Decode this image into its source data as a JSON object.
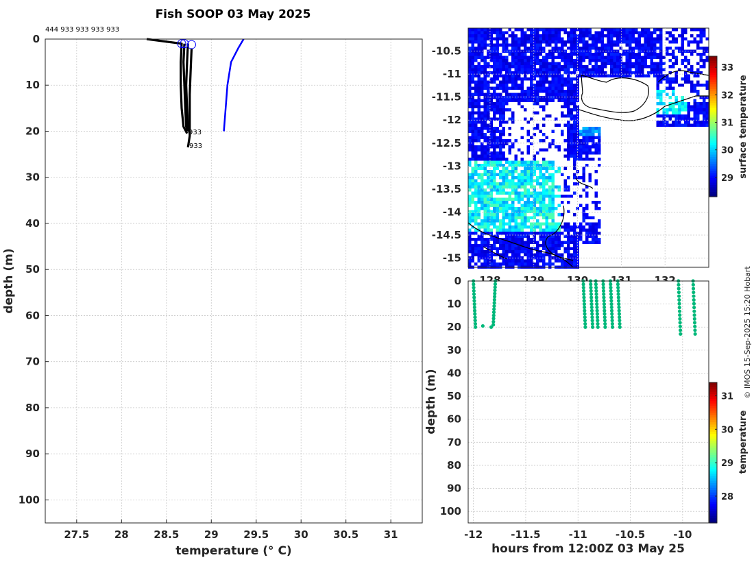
{
  "title": "Fish SOOP 03 May 2025",
  "credit": "© IMOS 15-Sep-2025 15:20 Hobart",
  "profile_id_labels": "444 933 933 933 933",
  "id_label_933": "933",
  "chart_data": [
    {
      "type": "line",
      "name": "temperature-profiles",
      "xlabel": "temperature (° C)",
      "ylabel": "depth (m)",
      "xlim": [
        27.15,
        31.35
      ],
      "ylim": [
        105,
        0
      ],
      "xticks": [
        27.5,
        28,
        28.5,
        29,
        29.5,
        30,
        30.5,
        31
      ],
      "xtick_labels": [
        "27.5",
        "28",
        "28.5",
        "29",
        "29.5",
        "30",
        "30.5",
        "31"
      ],
      "yticks": [
        0,
        10,
        20,
        30,
        40,
        50,
        60,
        70,
        80,
        90,
        100
      ],
      "series": [
        {
          "name": "profile-444",
          "color": "#0000ff",
          "points": [
            [
              29.36,
              0
            ],
            [
              29.3,
              2
            ],
            [
              29.22,
              5
            ],
            [
              29.18,
              10
            ],
            [
              29.16,
              15
            ],
            [
              29.14,
              20
            ]
          ]
        },
        {
          "name": "profile-933-a",
          "color": "#000000",
          "points": [
            [
              28.28,
              0
            ],
            [
              28.67,
              1
            ],
            [
              28.66,
              5
            ],
            [
              28.66,
              10
            ],
            [
              28.67,
              15
            ],
            [
              28.69,
              19
            ],
            [
              28.73,
              20.5
            ]
          ]
        },
        {
          "name": "profile-933-b",
          "color": "#000000",
          "points": [
            [
              28.7,
              1
            ],
            [
              28.69,
              5
            ],
            [
              28.7,
              10
            ],
            [
              28.71,
              15
            ],
            [
              28.72,
              19
            ],
            [
              28.74,
              20
            ]
          ]
        },
        {
          "name": "profile-933-c",
          "color": "#000000",
          "points": [
            [
              28.74,
              1
            ],
            [
              28.73,
              5
            ],
            [
              28.72,
              10
            ],
            [
              28.73,
              15
            ],
            [
              28.74,
              19
            ],
            [
              28.76,
              20.5
            ]
          ]
        },
        {
          "name": "profile-933-d",
          "color": "#000000",
          "points": [
            [
              28.78,
              2
            ],
            [
              28.77,
              7
            ],
            [
              28.76,
              12
            ],
            [
              28.76,
              17
            ],
            [
              28.76,
              21
            ],
            [
              28.74,
              23.5
            ]
          ]
        }
      ]
    },
    {
      "type": "heatmap",
      "name": "surface-temperature-map",
      "colorbar_label": "surface temperature",
      "clim": [
        28.3,
        33.4
      ],
      "colorbar_ticks": [
        29,
        30,
        31,
        32,
        33
      ],
      "yticks": [
        -10.5,
        -11,
        -11.5,
        -12,
        -12.5,
        -13,
        -13.5,
        -14,
        -14.5,
        -15
      ],
      "ytick_labels": [
        "-10.5",
        "-11",
        "-11.5",
        "-12",
        "-12.5",
        "-13",
        "-13.5",
        "-14",
        "-14.5",
        "-15"
      ],
      "xticks": [
        128,
        129,
        130,
        131,
        132
      ],
      "xtick_labels": [
        "128",
        "129",
        "130",
        "131",
        "132"
      ],
      "xlim": [
        127.5,
        133.0
      ],
      "ylim": [
        -15.2,
        -10.0
      ]
    },
    {
      "type": "scatter",
      "name": "depth-vs-time",
      "xlabel": "hours from 12:00Z 03 May 25",
      "ylabel": "depth (m)",
      "colorbar_label": "temperature",
      "clim": [
        27.2,
        31.4
      ],
      "colorbar_ticks": [
        28,
        29,
        30,
        31
      ],
      "xlim": [
        -12.05,
        -9.75
      ],
      "ylim": [
        105,
        0
      ],
      "xticks": [
        -12,
        -11.5,
        -11,
        -10.5,
        -10
      ],
      "xtick_labels": [
        "-12",
        "-11.5",
        "-11",
        "-10.5",
        "-10"
      ],
      "yticks": [
        0,
        10,
        20,
        30,
        40,
        50,
        60,
        70,
        80,
        90,
        100
      ],
      "casts": [
        {
          "start": -12.0,
          "end": -11.98,
          "min_depth": 0,
          "max_depth": 20
        },
        {
          "start": -11.79,
          "end": -11.81,
          "min_depth": 0,
          "max_depth": 19
        },
        {
          "start": -10.95,
          "end": -10.93,
          "min_depth": 0,
          "max_depth": 20
        },
        {
          "start": -10.88,
          "end": -10.86,
          "min_depth": 0,
          "max_depth": 20
        },
        {
          "start": -10.83,
          "end": -10.81,
          "min_depth": 0,
          "max_depth": 20
        },
        {
          "start": -10.76,
          "end": -10.74,
          "min_depth": 0,
          "max_depth": 20
        },
        {
          "start": -10.69,
          "end": -10.67,
          "min_depth": 0,
          "max_depth": 20
        },
        {
          "start": -10.62,
          "end": -10.6,
          "min_depth": 0,
          "max_depth": 20
        },
        {
          "start": -10.04,
          "end": -10.02,
          "min_depth": 0,
          "max_depth": 23
        },
        {
          "start": -9.9,
          "end": -9.88,
          "min_depth": 0,
          "max_depth": 23
        }
      ],
      "extra_points": [
        [
          -11.91,
          19.5
        ],
        [
          -11.83,
          20
        ]
      ]
    }
  ]
}
